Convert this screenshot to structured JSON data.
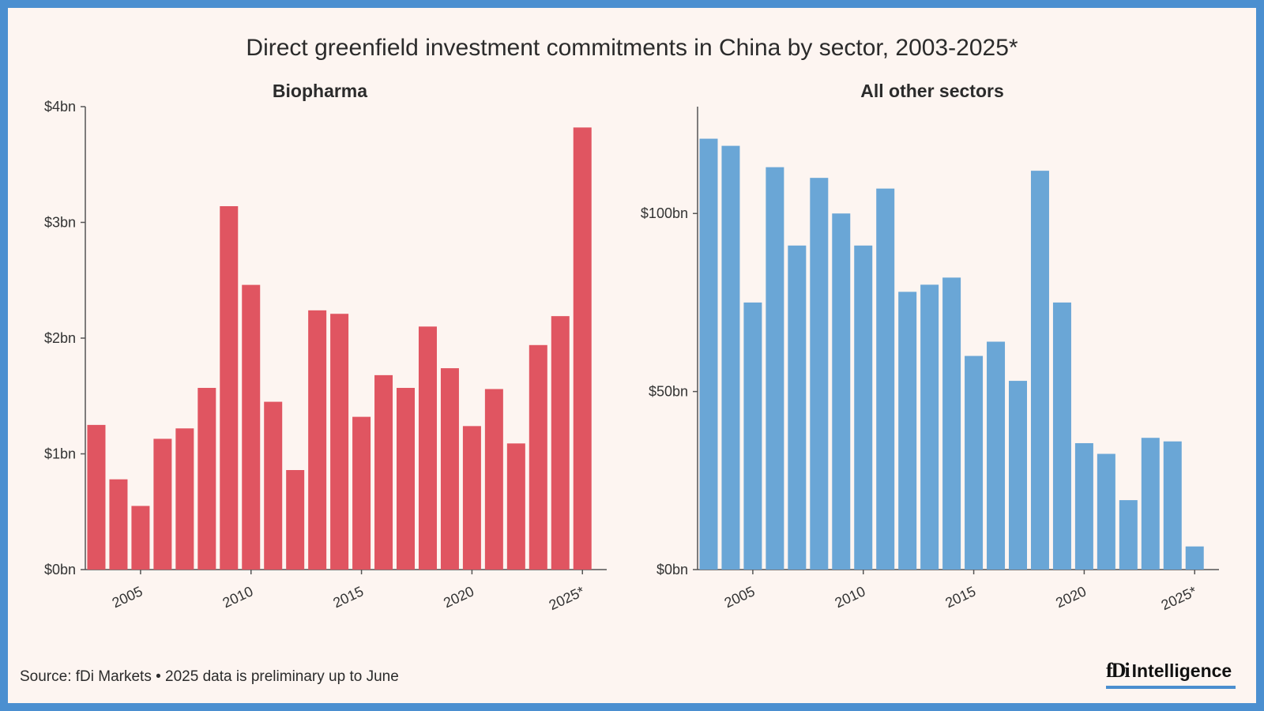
{
  "title": "Direct greenfield investment commitments in China by sector, 2003-2025*",
  "source": "Source: fDi Markets • 2025 data is preliminary up to June",
  "logo": {
    "mark": "fDi",
    "brand": "Intelligence"
  },
  "colors": {
    "biopharma": "#e05561",
    "other": "#6aa6d6",
    "accent": "#4b8fd0"
  },
  "chart_data": [
    {
      "type": "bar",
      "title": "Biopharma",
      "categories": [
        "2003",
        "2004",
        "2005",
        "2006",
        "2007",
        "2008",
        "2009",
        "2010",
        "2011",
        "2012",
        "2013",
        "2014",
        "2015",
        "2016",
        "2017",
        "2018",
        "2019",
        "2020",
        "2021",
        "2022",
        "2023",
        "2024",
        "2025*"
      ],
      "values": [
        1.25,
        0.78,
        0.55,
        1.13,
        1.22,
        1.57,
        3.14,
        2.46,
        1.45,
        0.86,
        2.24,
        2.21,
        1.32,
        1.68,
        1.57,
        2.1,
        1.74,
        1.24,
        1.56,
        1.09,
        1.94,
        2.19,
        3.82
      ],
      "ylim": [
        0,
        4
      ],
      "yticks": [
        0,
        1,
        2,
        3,
        4
      ],
      "ytick_labels": [
        "$0bn",
        "$1bn",
        "$2bn",
        "$3bn",
        "$4bn"
      ],
      "xticks": [
        "2005",
        "2010",
        "2015",
        "2020",
        "2025*"
      ],
      "xlabel": "",
      "ylabel": "",
      "unit": "bn USD"
    },
    {
      "type": "bar",
      "title": "All other sectors",
      "categories": [
        "2003",
        "2004",
        "2005",
        "2006",
        "2007",
        "2008",
        "2009",
        "2010",
        "2011",
        "2012",
        "2013",
        "2014",
        "2015",
        "2016",
        "2017",
        "2018",
        "2019",
        "2020",
        "2021",
        "2022",
        "2023",
        "2024",
        "2025*"
      ],
      "values": [
        121,
        119,
        75,
        113,
        91,
        110,
        100,
        91,
        107,
        78,
        80,
        82,
        60,
        64,
        53,
        112,
        75,
        35.5,
        32.5,
        19.5,
        37,
        36,
        6.5
      ],
      "ylim": [
        0,
        130
      ],
      "yticks": [
        0,
        50,
        100
      ],
      "ytick_labels": [
        "$0bn",
        "$50bn",
        "$100bn"
      ],
      "xticks": [
        "2005",
        "2010",
        "2015",
        "2020",
        "2025*"
      ],
      "xlabel": "",
      "ylabel": "",
      "unit": "bn USD"
    }
  ]
}
